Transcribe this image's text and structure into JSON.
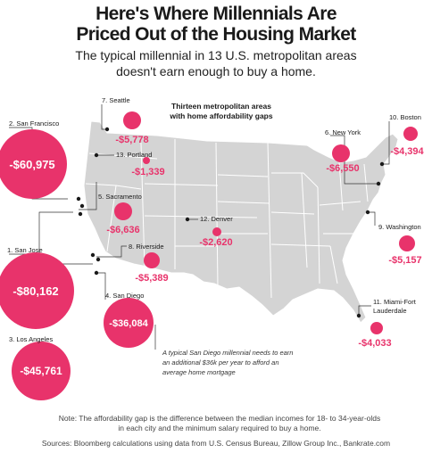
{
  "header": {
    "title_line1": "Here's Where Millennials Are",
    "title_line2": "Priced Out of the Housing Market",
    "subtitle_line1": "The typical millennial in 13 U.S. metropolitan areas",
    "subtitle_line2": "doesn't earn enough to buy a home."
  },
  "map": {
    "heading_line1": "Thirteen metropolitan areas",
    "heading_line2": "with home affordability gaps",
    "accent_color": "#e8336b",
    "land_color": "#d4d4d4",
    "areas": [
      {
        "rank": 1,
        "label": "1. San Jose",
        "gap": "-$80,162",
        "gap_value": -80162
      },
      {
        "rank": 2,
        "label": "2. San Francisco",
        "gap": "-$60,975",
        "gap_value": -60975
      },
      {
        "rank": 3,
        "label": "3. Los Angeles",
        "gap": "-$45,761",
        "gap_value": -45761
      },
      {
        "rank": 4,
        "label": "4. San Diego",
        "gap": "-$36,084",
        "gap_value": -36084
      },
      {
        "rank": 5,
        "label": "5. Sacramento",
        "gap": "-$6,636",
        "gap_value": -6636
      },
      {
        "rank": 6,
        "label": "6. New York",
        "gap": "-$6,550",
        "gap_value": -6550
      },
      {
        "rank": 7,
        "label": "7. Seattle",
        "gap": "-$5,778",
        "gap_value": -5778
      },
      {
        "rank": 8,
        "label": "8. Riverside",
        "gap": "-$5,389",
        "gap_value": -5389
      },
      {
        "rank": 9,
        "label": "9. Washington",
        "gap": "-$5,157",
        "gap_value": -5157
      },
      {
        "rank": 10,
        "label": "10. Boston",
        "gap": "-$4,394",
        "gap_value": -4394
      },
      {
        "rank": 11,
        "label_line1": "11. Miami-Fort",
        "label_line2": "Lauderdale",
        "gap": "-$4,033",
        "gap_value": -4033
      },
      {
        "rank": 12,
        "label": "12. Denver",
        "gap": "-$2,620",
        "gap_value": -2620
      },
      {
        "rank": 13,
        "label": "13. Portland",
        "gap": "-$1,339",
        "gap_value": -1339
      }
    ],
    "callout_line1": "A typical San Diego millennial needs to earn",
    "callout_line2": "an additional $36k per year to afford an",
    "callout_line3": "average home mortgage"
  },
  "footer": {
    "note_line1": "Note: The affordability gap is the difference between the median incomes for 18- to 34-year-olds",
    "note_line2": "in each city and the minimum salary required to buy a home.",
    "sources": "Sources: Bloomberg calculations using data from U.S. Census Bureau, Zillow Group Inc., Bankrate.com"
  }
}
